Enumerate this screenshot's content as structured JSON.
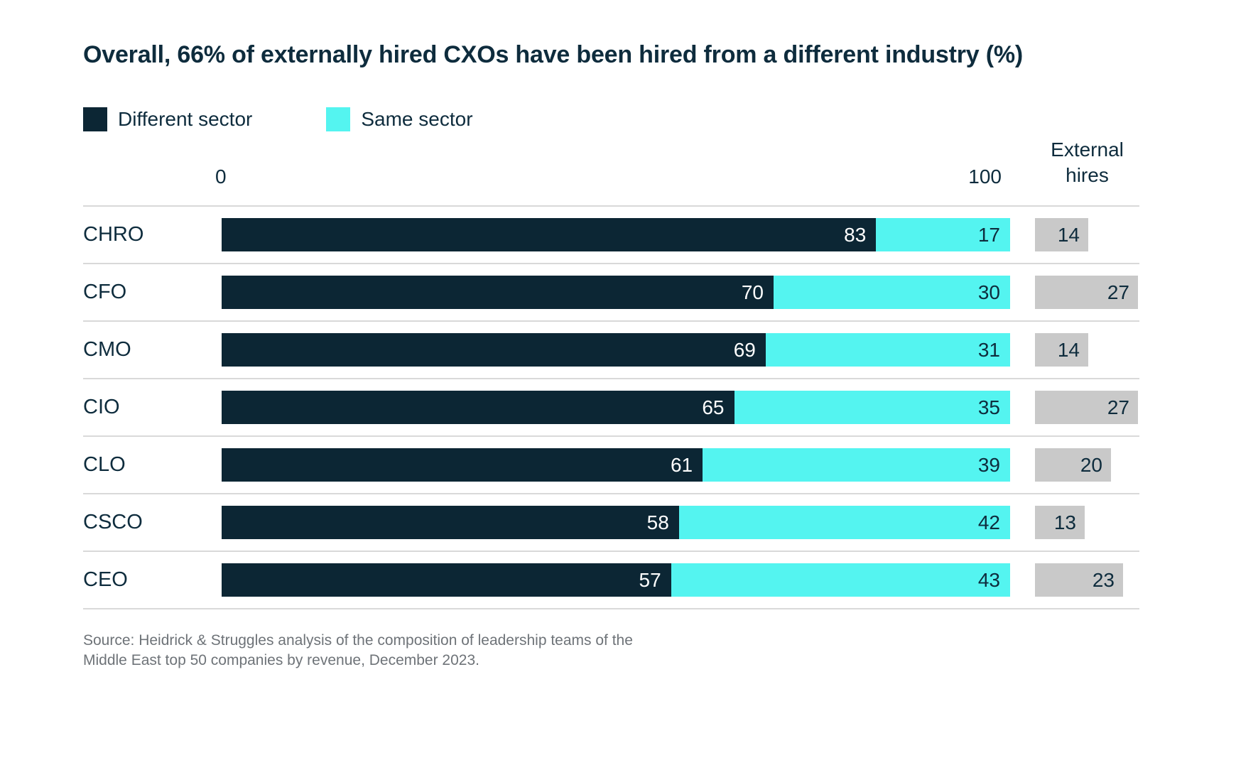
{
  "title": "Overall, 66% of externally hired CXOs have been hired from a different industry (%)",
  "legend": [
    {
      "label": "Different sector",
      "color": "#0c2634"
    },
    {
      "label": "Same sector",
      "color": "#54f4f0"
    }
  ],
  "axis": {
    "min_label": "0",
    "max_label": "100"
  },
  "external_hires_header": "External hires",
  "chart_data": {
    "type": "bar",
    "orientation": "horizontal",
    "stacked": true,
    "title": "Overall, 66% of externally hired CXOs have been hired from a different industry (%)",
    "categories": [
      "CHRO",
      "CFO",
      "CMO",
      "CIO",
      "CLO",
      "CSCO",
      "CEO"
    ],
    "series": [
      {
        "name": "Different sector",
        "color": "#0c2634",
        "text_color": "#ffffff",
        "values": [
          83,
          70,
          69,
          65,
          61,
          58,
          57
        ]
      },
      {
        "name": "Same sector",
        "color": "#54f4f0",
        "text_color": "#0e2c3d",
        "values": [
          17,
          30,
          31,
          35,
          39,
          42,
          43
        ]
      }
    ],
    "external_hires": {
      "header": "External hires",
      "values": [
        14,
        27,
        14,
        27,
        20,
        13,
        23
      ],
      "color": "#c9c9c9",
      "bar_scale_max": 27
    },
    "xlim": [
      0,
      100
    ],
    "x_ticks": [
      "0",
      "100"
    ],
    "grid": false,
    "legend_position": "top-left"
  },
  "source": {
    "line1": "Source: Heidrick & Struggles analysis of the composition of leadership teams of the",
    "line2": "Middle East top 50 companies by revenue, December 2023."
  }
}
